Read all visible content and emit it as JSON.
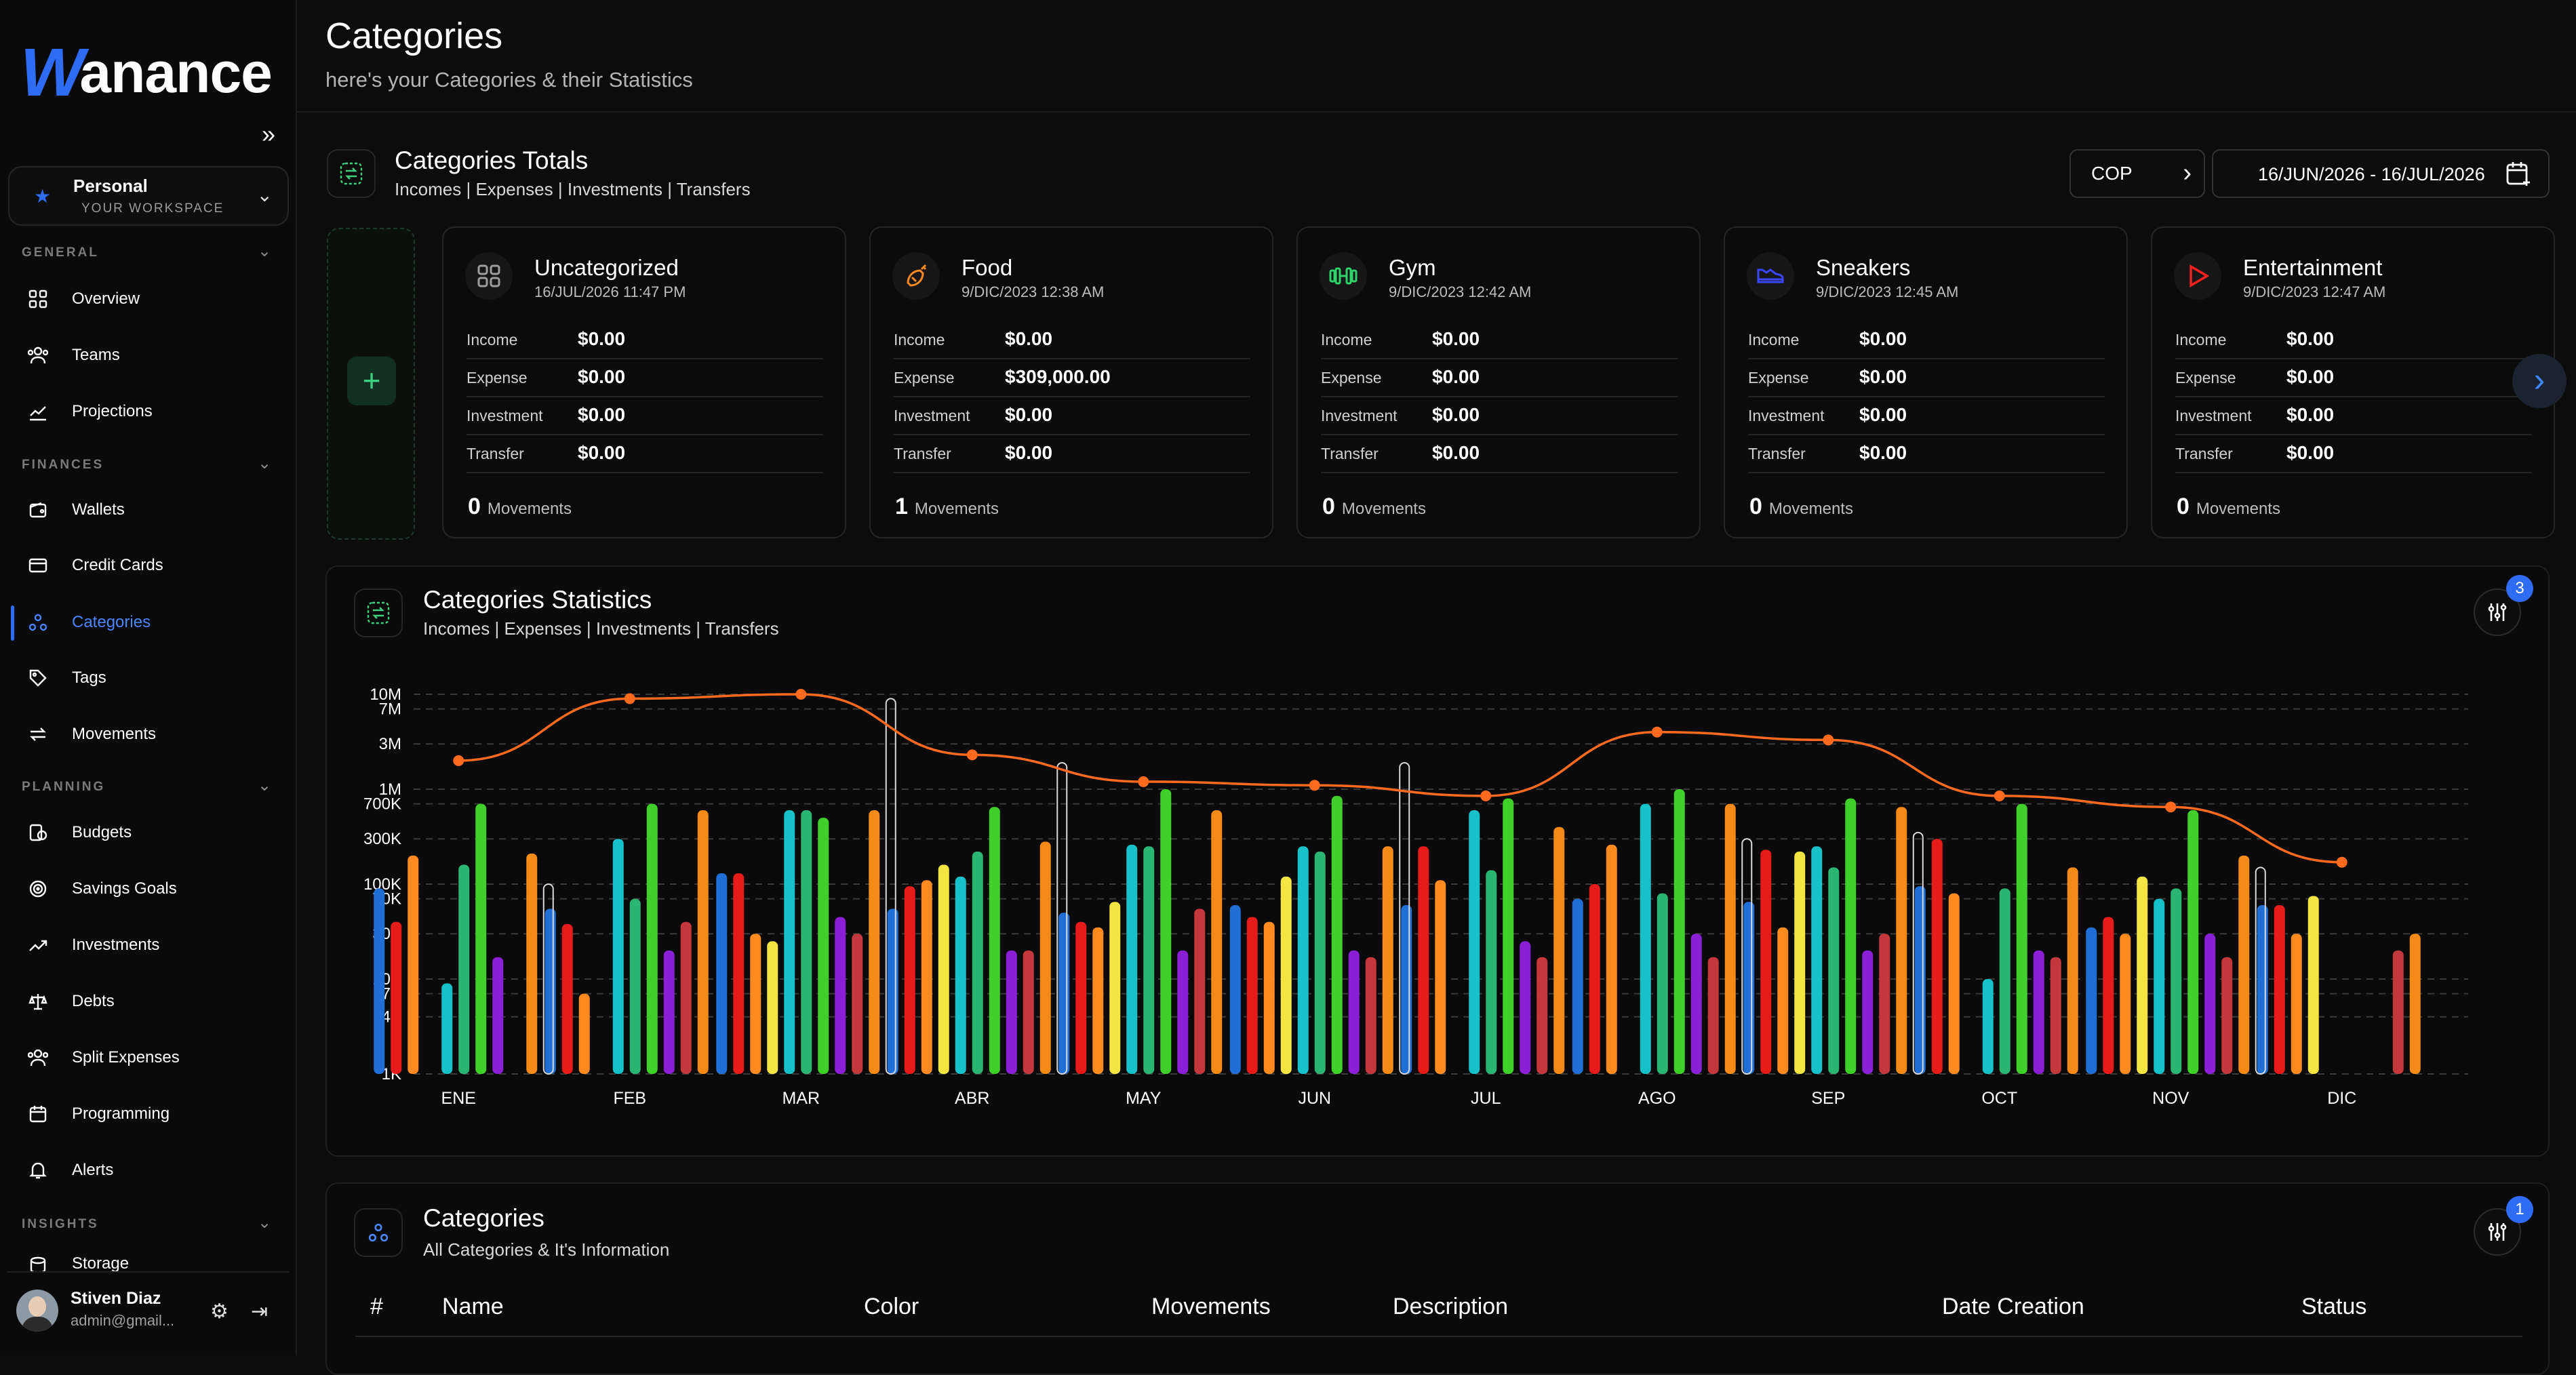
{
  "app": {
    "logo_letter": "W",
    "logo_rest": "anance"
  },
  "sidebar": {
    "workspace": {
      "name": "Personal",
      "sub": "YOUR WORKSPACE"
    },
    "sections": {
      "general": "GENERAL",
      "finances": "FINANCES",
      "planning": "PLANNING",
      "insights": "INSIGHTS"
    },
    "items": {
      "overview": "Overview",
      "teams": "Teams",
      "projections": "Projections",
      "wallets": "Wallets",
      "credit_cards": "Credit Cards",
      "categories": "Categories",
      "tags": "Tags",
      "movements": "Movements",
      "budgets": "Budgets",
      "savings_goals": "Savings Goals",
      "investments": "Investments",
      "debts": "Debts",
      "split_expenses": "Split Expenses",
      "programming": "Programming",
      "alerts": "Alerts",
      "storage": "Storage"
    },
    "user": {
      "name": "Stiven Diaz",
      "email": "admin@gmail..."
    }
  },
  "header": {
    "title": "Categories",
    "subtitle": "here's your Categories & their Statistics"
  },
  "totals": {
    "title": "Categories Totals",
    "subtitle": "Incomes | Expenses | Investments | Transfers",
    "currency": "COP",
    "date_range": "16/JUN/2026 - 16/JUL/2026",
    "labels": {
      "income": "Income",
      "expense": "Expense",
      "investment": "Investment",
      "transfer": "Transfer",
      "movements": "Movements"
    },
    "cards": [
      {
        "name": "Uncategorized",
        "date": "16/JUL/2026 11:47 PM",
        "income": "$0.00",
        "expense": "$0.00",
        "investment": "$0.00",
        "transfer": "$0.00",
        "movements": "0",
        "icon": "grid-icon",
        "color": "#9e9e9e"
      },
      {
        "name": "Food",
        "date": "9/DIC/2023 12:38 AM",
        "income": "$0.00",
        "expense": "$309,000.00",
        "investment": "$0.00",
        "transfer": "$0.00",
        "movements": "1",
        "icon": "food-icon",
        "color": "#ff8a1f"
      },
      {
        "name": "Gym",
        "date": "9/DIC/2023 12:42 AM",
        "income": "$0.00",
        "expense": "$0.00",
        "investment": "$0.00",
        "transfer": "$0.00",
        "movements": "0",
        "icon": "dumbbell-icon",
        "color": "#2fd36b"
      },
      {
        "name": "Sneakers",
        "date": "9/DIC/2023 12:45 AM",
        "income": "$0.00",
        "expense": "$0.00",
        "investment": "$0.00",
        "transfer": "$0.00",
        "movements": "0",
        "icon": "sneaker-icon",
        "color": "#3b46ff"
      },
      {
        "name": "Entertainment",
        "date": "9/DIC/2023 12:47 AM",
        "income": "$0.00",
        "expense": "$0.00",
        "investment": "$0.00",
        "transfer": "$0.00",
        "movements": "0",
        "icon": "play-icon",
        "color": "#ff2020"
      }
    ]
  },
  "statistics": {
    "title": "Categories Statistics",
    "subtitle": "Incomes | Expenses | Investments | Transfers",
    "filter_badge": "3"
  },
  "categories_table": {
    "title": "Categories",
    "subtitle": "All Categories & It's Information",
    "filter_badge": "1",
    "columns": [
      "#",
      "Name",
      "Color",
      "Movements",
      "Description",
      "Date Creation",
      "Status"
    ]
  },
  "chart_data": {
    "type": "bar",
    "scale": "log",
    "categories": [
      "ENE",
      "FEB",
      "MAR",
      "ABR",
      "MAY",
      "JUN",
      "JUL",
      "AGO",
      "SEP",
      "OCT",
      "NOV",
      "DIC"
    ],
    "y_ticks": [
      "1K",
      "4K",
      "7K",
      "10K",
      "30K",
      "70K",
      "100K",
      "300K",
      "700K",
      "1M",
      "3M",
      "7M",
      "10M"
    ],
    "y_tick_values": [
      1000,
      4000,
      7000,
      10000,
      30000,
      70000,
      100000,
      300000,
      700000,
      1000000,
      3000000,
      7000000,
      10000000
    ],
    "ylim": [
      1000,
      10000000
    ],
    "bar_colors": [
      "#1f6fd6",
      "#e81b1b",
      "#ff8a1f",
      "#f4e542",
      "#16c1c9",
      "#2bb573",
      "#3fd12a",
      "#8b1fd6",
      "#c4383d",
      "#f58a16"
    ],
    "series": [
      {
        "name": "s1",
        "color": "#1f6fd6",
        "values": [
          90000,
          55000,
          130000,
          55000,
          50000,
          60000,
          60000,
          70000,
          65000,
          95000,
          35000,
          60000
        ]
      },
      {
        "name": "s2",
        "color": "#e81b1b",
        "values": [
          40000,
          38000,
          130000,
          95000,
          40000,
          45000,
          250000,
          100000,
          230000,
          300000,
          45000,
          60000
        ]
      },
      {
        "name": "s3",
        "color": "#ff8a1f",
        "values": [
          200000,
          7000,
          30000,
          110000,
          35000,
          40000,
          110000,
          260000,
          35000,
          80000,
          30000,
          30000
        ]
      },
      {
        "name": "s4",
        "color": "#f4e542",
        "values": [
          0,
          0,
          25000,
          160000,
          65000,
          120000,
          0,
          0,
          220000,
          0,
          120000,
          75000
        ]
      },
      {
        "name": "s5",
        "color": "#16c1c9",
        "values": [
          9000,
          300000,
          600000,
          120000,
          260000,
          250000,
          600000,
          700000,
          250000,
          10000,
          70000,
          0
        ]
      },
      {
        "name": "s6",
        "color": "#2bb573",
        "values": [
          160000,
          70000,
          600000,
          220000,
          250000,
          220000,
          140000,
          80000,
          150000,
          90000,
          90000,
          0
        ]
      },
      {
        "name": "s7",
        "color": "#3fd12a",
        "values": [
          700000,
          700000,
          500000,
          650000,
          1000000,
          850000,
          800000,
          1000000,
          800000,
          700000,
          600000,
          0
        ]
      },
      {
        "name": "s8",
        "color": "#8b1fd6",
        "values": [
          17000,
          20000,
          45000,
          20000,
          20000,
          20000,
          25000,
          30000,
          20000,
          20000,
          30000,
          1000
        ]
      },
      {
        "name": "s9",
        "color": "#c4383d",
        "values": [
          0,
          40000,
          30000,
          20000,
          55000,
          17000,
          17000,
          17000,
          30000,
          17000,
          17000,
          20000
        ]
      },
      {
        "name": "s10",
        "color": "#f58a16",
        "values": [
          210000,
          600000,
          600000,
          280000,
          600000,
          250000,
          400000,
          700000,
          650000,
          150000,
          200000,
          30000
        ]
      }
    ],
    "line": {
      "color": "#ff6a1f",
      "values": [
        2000000,
        9000000,
        10000000,
        2300000,
        1200000,
        1100000,
        850000,
        4000000,
        3300000,
        850000,
        650000,
        170000
      ]
    },
    "markers": {
      "color": "#d9d9d9",
      "values": [
        0,
        100000,
        0,
        9000000,
        1900000,
        0,
        1900000,
        0,
        300000,
        350000,
        0,
        150000
      ]
    },
    "xlabel": "",
    "ylabel": "",
    "grid": true
  }
}
